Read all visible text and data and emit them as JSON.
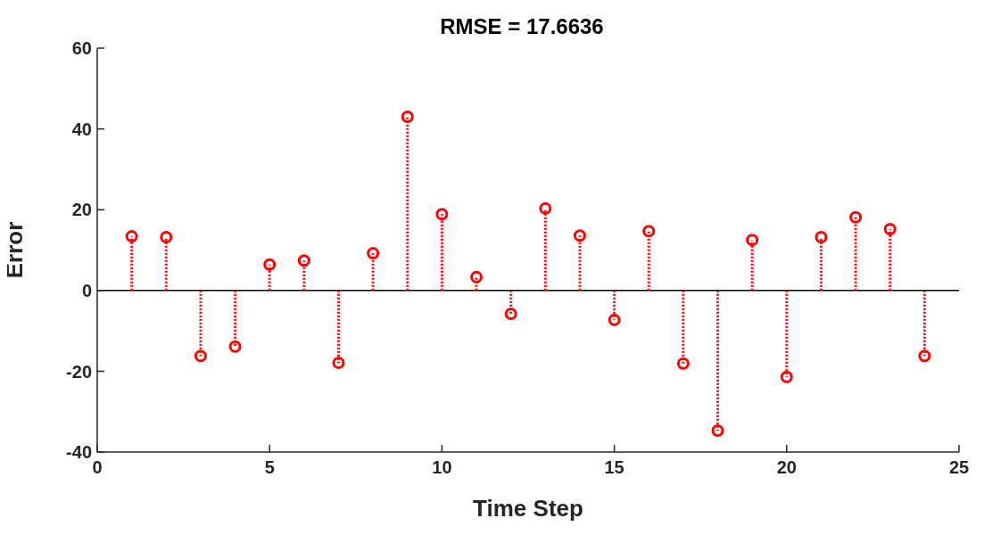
{
  "chart_data": {
    "type": "lollipop",
    "title": "RMSE = 17.6636",
    "xlabel": "Time Step",
    "ylabel": "Error",
    "x": [
      1,
      2,
      3,
      4,
      5,
      6,
      7,
      8,
      9,
      10,
      11,
      12,
      13,
      14,
      15,
      16,
      17,
      18,
      19,
      20,
      21,
      22,
      23,
      24
    ],
    "series": [
      {
        "color": "#ff0000",
        "values": [
          13.4,
          13.2,
          -16.2,
          -13.9,
          6.4,
          7.4,
          -17.9,
          9.2,
          43.0,
          18.9,
          3.3,
          -5.8,
          20.3,
          13.6,
          -7.3,
          14.7,
          -18.1,
          -34.7,
          12.5,
          -21.4,
          13.2,
          18.1,
          15.2,
          -16.2
        ]
      }
    ],
    "xlim": [
      0,
      25
    ],
    "xticks": [
      0,
      5,
      10,
      15,
      20,
      25
    ],
    "ylim": [
      -40,
      60
    ],
    "yticks": [
      -40,
      -20,
      0,
      20,
      40,
      60
    ],
    "ref_lines": [
      {
        "axis": "y",
        "value": 0,
        "color": "#000000"
      }
    ],
    "marker": "circle",
    "line_style": "dotted",
    "grid": false,
    "legend": false
  }
}
